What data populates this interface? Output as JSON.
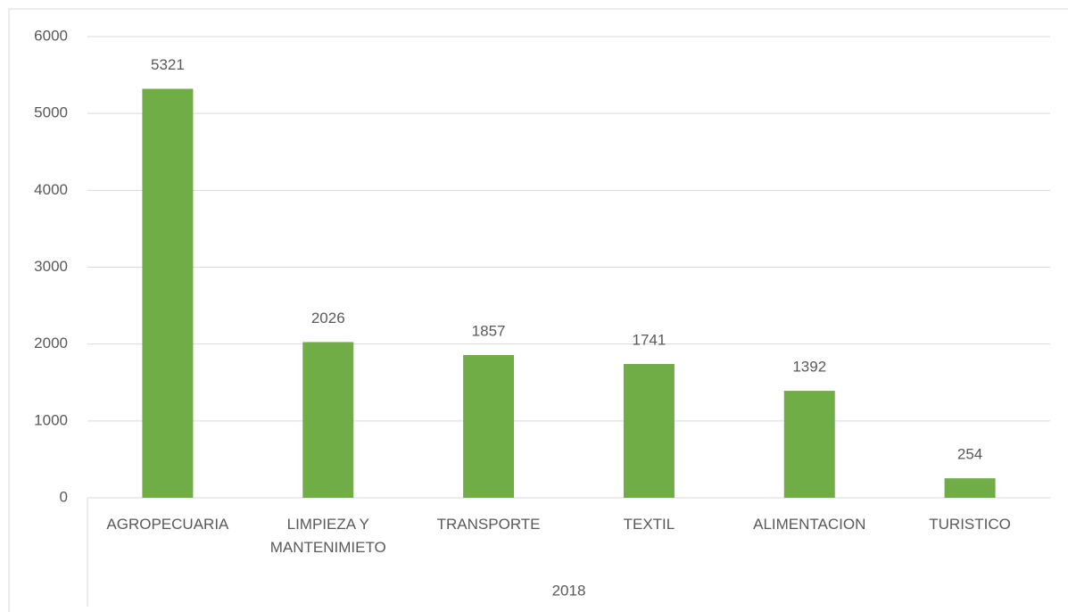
{
  "chart_data": {
    "type": "bar",
    "categories": [
      "AGROPECUARIA",
      "LIMPIEZA Y MANTENIMIETO",
      "TRANSPORTE",
      "TEXTIL",
      "ALIMENTACION",
      "TURISTICO"
    ],
    "values": [
      5321,
      2026,
      1857,
      1741,
      1392,
      254
    ],
    "color": "#70ad47",
    "x_group": "2018",
    "ylim": [
      0,
      6000
    ],
    "yticks": [
      0,
      1000,
      2000,
      3000,
      4000,
      5000,
      6000
    ],
    "grid": true
  }
}
